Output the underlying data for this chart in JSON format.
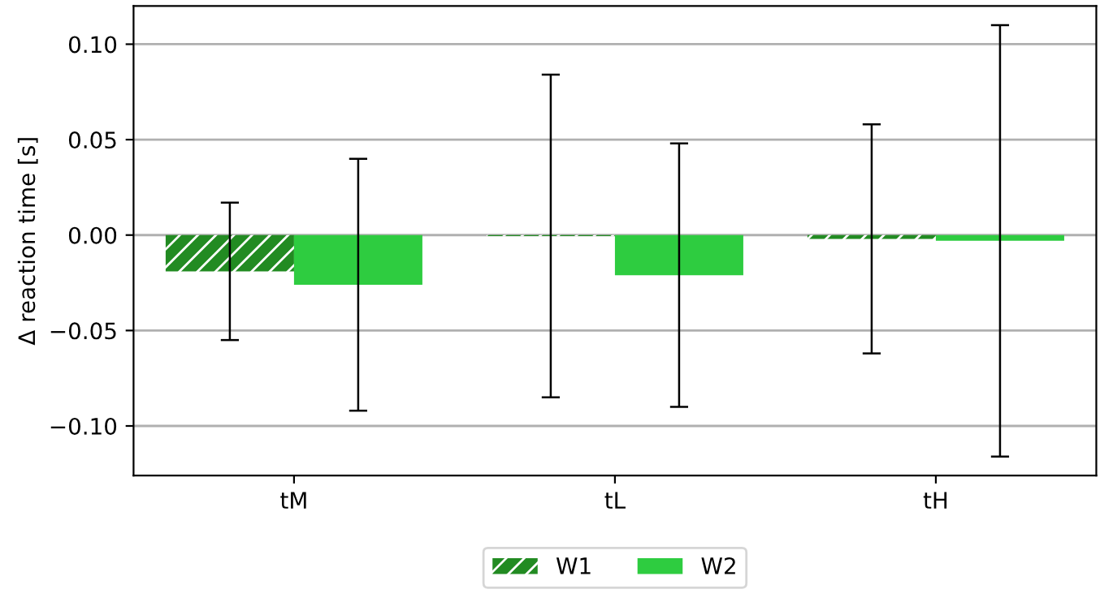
{
  "chart_data": {
    "type": "bar",
    "ylabel": "Δ reaction time [s]",
    "categories": [
      "tM",
      "tL",
      "tH"
    ],
    "series": [
      {
        "name": "W1",
        "color": "#228b22",
        "values": [
          -0.019,
          -0.0005,
          -0.002
        ],
        "errors": [
          0.036,
          0.0845,
          0.06
        ]
      },
      {
        "name": "W2",
        "color": "#2ecc40",
        "values": [
          -0.026,
          -0.021,
          -0.003
        ],
        "errors": [
          0.066,
          0.069,
          0.113
        ]
      }
    ],
    "ylim": [
      -0.126,
      0.12
    ],
    "yticks": [
      {
        "value": -0.1,
        "label": "−0.10"
      },
      {
        "value": -0.05,
        "label": "−0.05"
      },
      {
        "value": 0.0,
        "label": "0.00"
      },
      {
        "value": 0.05,
        "label": "0.05"
      },
      {
        "value": 0.1,
        "label": "0.10"
      }
    ],
    "grid": "y",
    "legend": "bottom"
  }
}
